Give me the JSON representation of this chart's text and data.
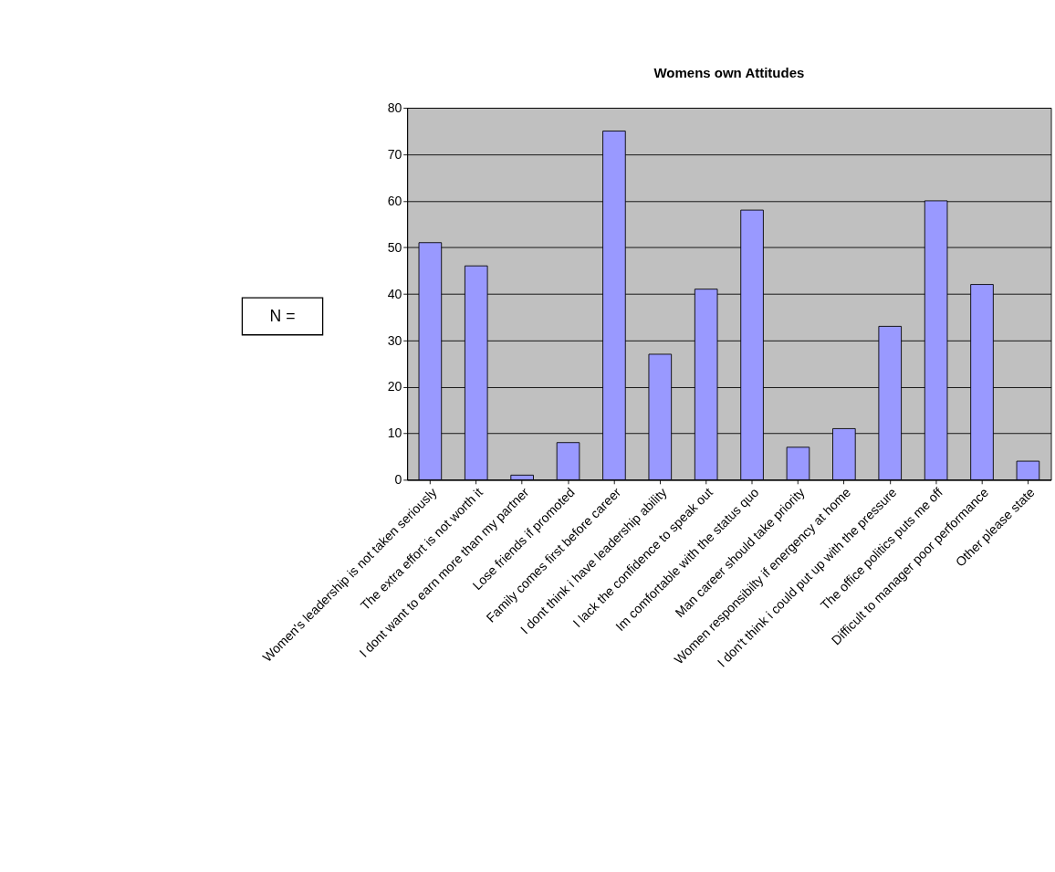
{
  "chart_data": {
    "type": "bar",
    "title": "Womens own Attitudes",
    "categories": [
      "Women's leadership is not taken seriously",
      "The extra effort is not worth it",
      "I dont want to earn more than my partner",
      "Lose friends if promoted",
      "Family comes first before career",
      "I dont think i have leadership ability",
      "I lack the confidence to speak out",
      "Im comfortable with the status quo",
      "Man career should take priority",
      "Women responsibilty if energency at home",
      "I don't think i could put up with the pressure",
      "The office politics puts me off",
      "Difficult to manager poor performance",
      "Other please state"
    ],
    "values": [
      51,
      46,
      1,
      8,
      75,
      27,
      41,
      58,
      7,
      11,
      33,
      60,
      42,
      4
    ],
    "color": "#9999ff",
    "ylim": [
      0,
      80
    ],
    "yticks": [
      0,
      10,
      20,
      30,
      40,
      50,
      60,
      70,
      80
    ],
    "grid": "y",
    "annotations": [
      "N ="
    ]
  }
}
